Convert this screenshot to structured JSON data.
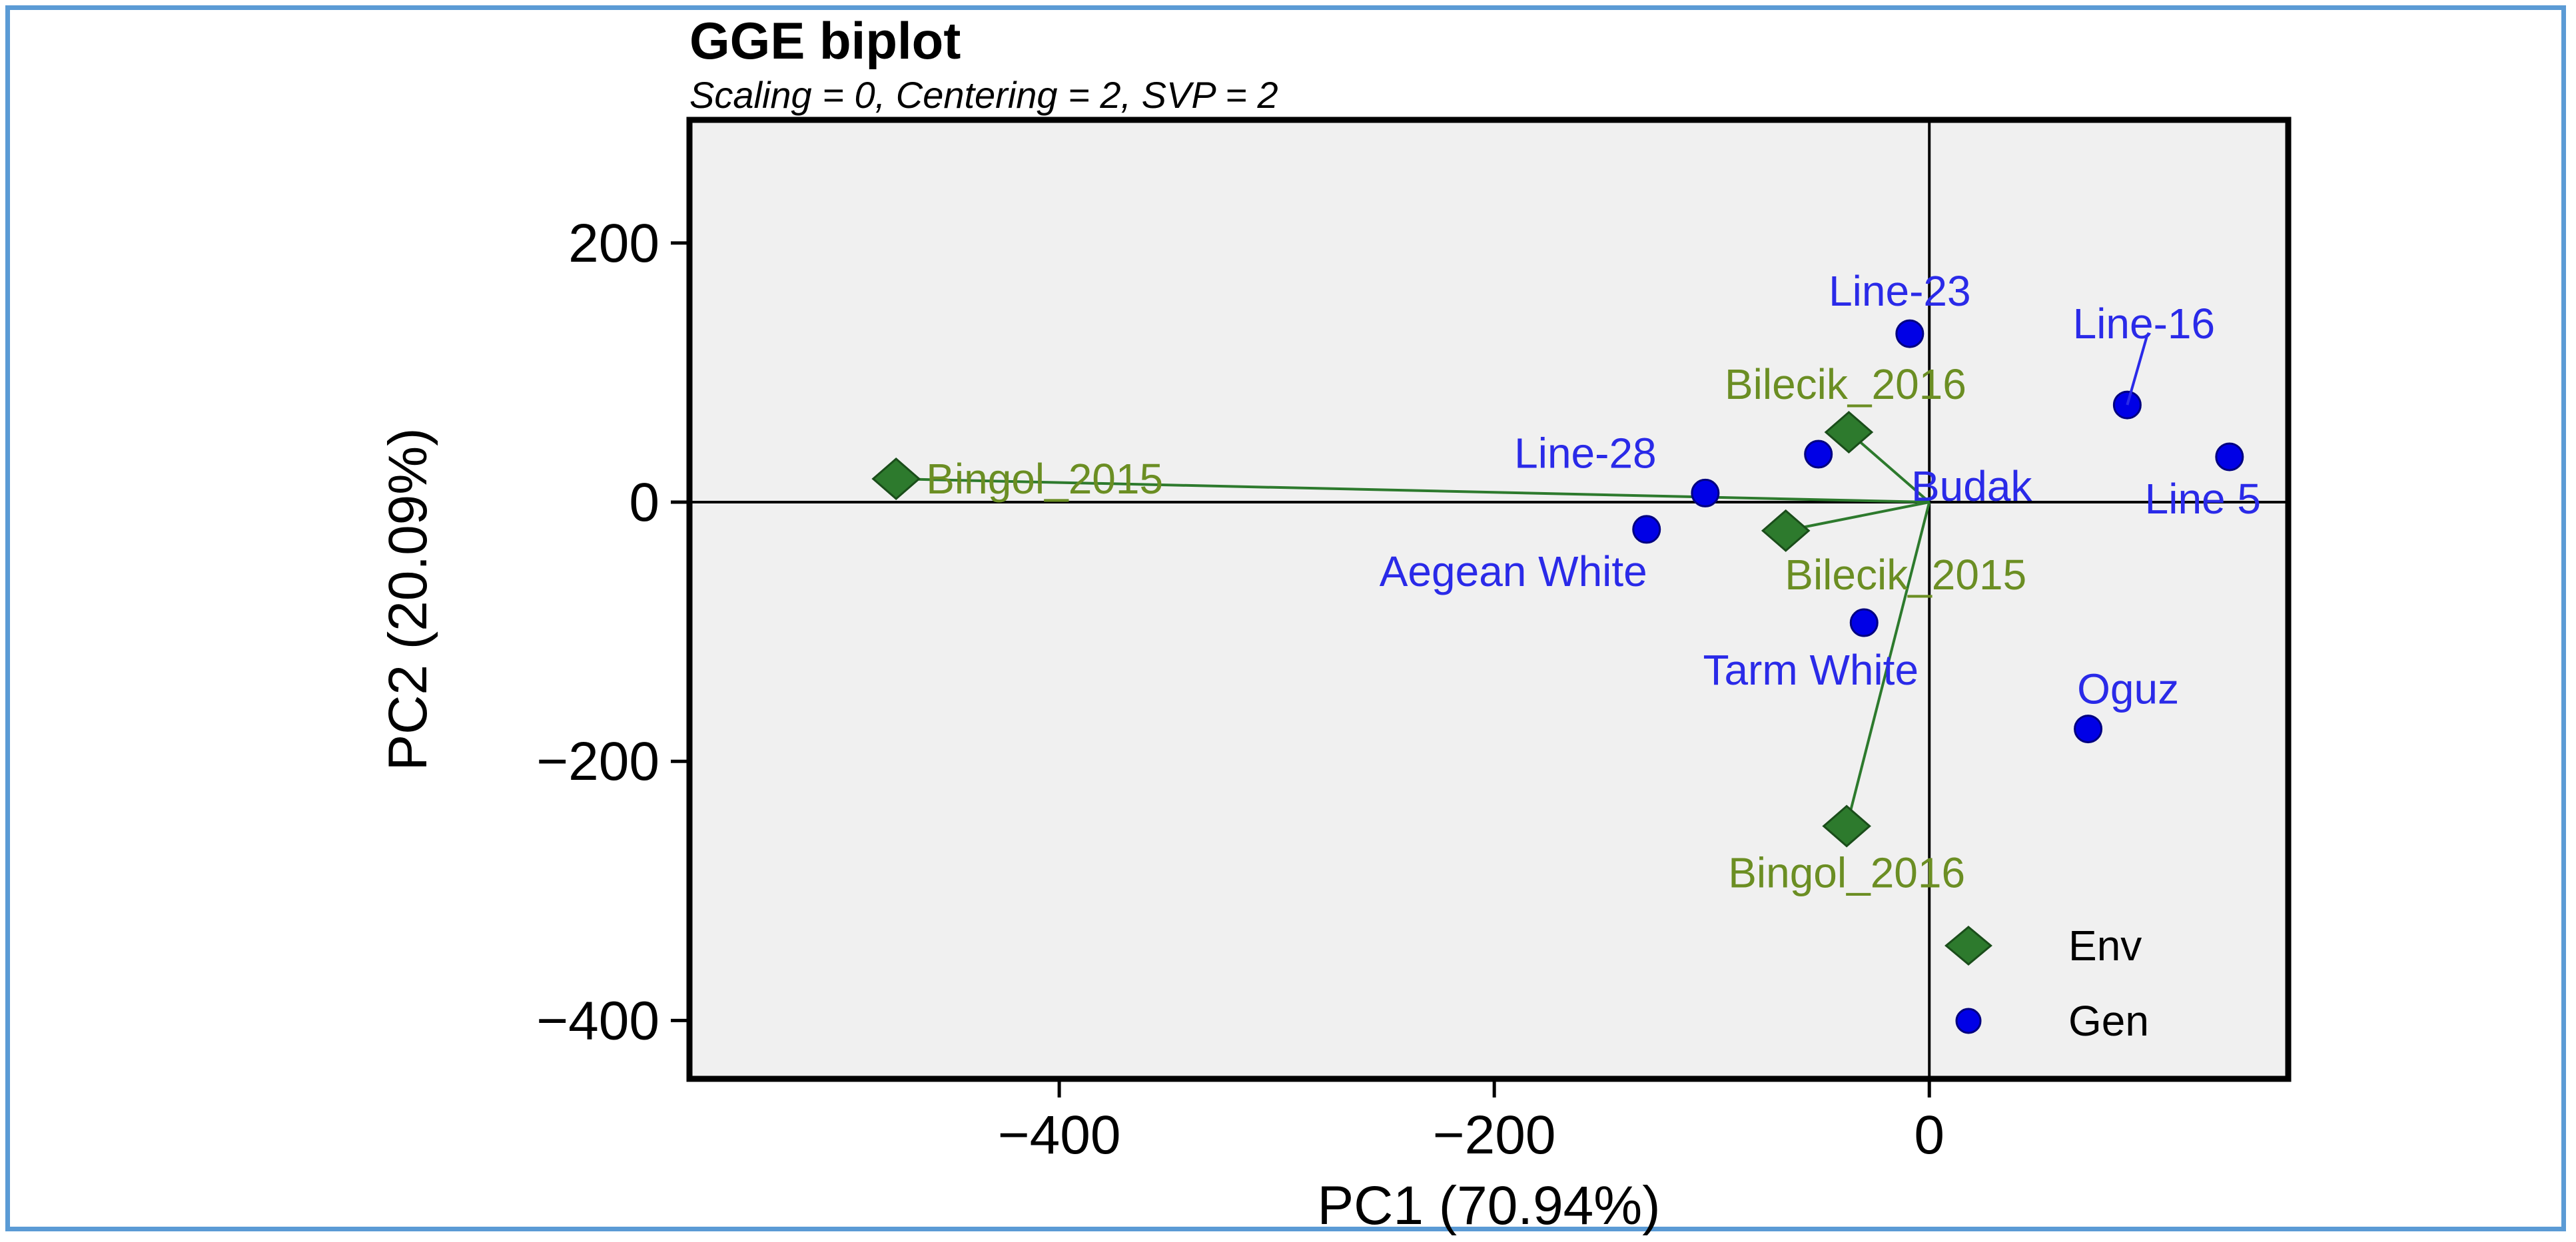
{
  "chart_data": {
    "type": "scatter",
    "title": "GGE biplot",
    "subtitle": "Scaling = 0, Centering = 2, SVP = 2",
    "xlabel": "PC1 (70.94%)",
    "ylabel": "PC2 (20.09%)",
    "xlim": [
      -570,
      165
    ],
    "ylim": [
      -445,
      295
    ],
    "xticks": [
      -400,
      -200,
      0
    ],
    "yticks": [
      -400,
      -200,
      0,
      200
    ],
    "xtick_labels": [
      "−400",
      "−200",
      "0"
    ],
    "ytick_labels": [
      "−400",
      "−200",
      "0",
      "200"
    ],
    "origin_lines": true,
    "grid": false,
    "background": "#f0f0f0",
    "legend": {
      "position": "bottom-right",
      "entries": [
        {
          "name": "Env",
          "marker": "diamond",
          "color": "#2d7a2d"
        },
        {
          "name": "Gen",
          "marker": "circle",
          "color": "#0000e6"
        }
      ]
    },
    "series": [
      {
        "name": "Env",
        "marker": "diamond",
        "color": "#2d7a2d",
        "label_color": "#6b8e23",
        "vectors_from_origin": true,
        "points": [
          {
            "label": "Bingol_2015",
            "x": -475,
            "y": 18
          },
          {
            "label": "Bilecik_2016",
            "x": -37,
            "y": 54
          },
          {
            "label": "Bilecik_2015",
            "x": -66,
            "y": -22
          },
          {
            "label": "Bingol_2016",
            "x": -38,
            "y": -250
          }
        ]
      },
      {
        "name": "Gen",
        "marker": "circle",
        "color": "#0000e6",
        "label_color": "#2a2ae8",
        "points": [
          {
            "label": "Line-23",
            "x": -9,
            "y": 130
          },
          {
            "label": "Line-16",
            "x": 91,
            "y": 75
          },
          {
            "label": "Line-28",
            "x": -103,
            "y": 7
          },
          {
            "label": "Budak",
            "x": -51,
            "y": 37
          },
          {
            "label": "Line 5",
            "x": 138,
            "y": 35
          },
          {
            "label": "Aegean White",
            "x": -130,
            "y": -21
          },
          {
            "label": "Tarm White",
            "x": -30,
            "y": -93
          },
          {
            "label": "Oguz",
            "x": 73,
            "y": -175
          }
        ]
      }
    ]
  }
}
